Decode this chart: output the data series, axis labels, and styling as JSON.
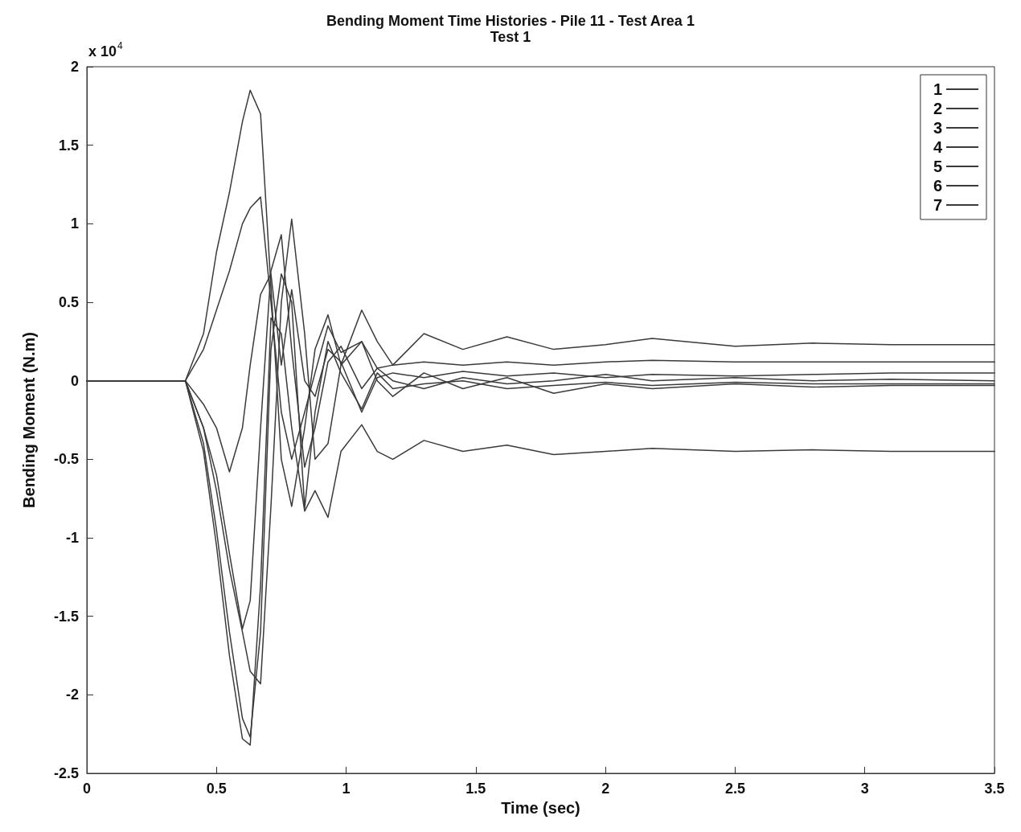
{
  "chart_data": {
    "type": "line",
    "title": "Bending Moment Time Histories - Pile 11 - Test Area 1",
    "subtitle": "Test 1",
    "xlabel": "Time (sec)",
    "ylabel": "Bending Moment (N.m)",
    "annotations": [
      "x 10$^{4}$"
    ],
    "x": [
      0,
      0.38,
      0.45,
      0.5,
      0.55,
      0.6,
      0.63,
      0.67,
      0.71,
      0.75,
      0.79,
      0.84,
      0.88,
      0.93,
      0.98,
      1.06,
      1.12,
      1.18,
      1.3,
      1.45,
      1.62,
      1.8,
      2.0,
      2.18,
      2.5,
      2.8,
      3.1,
      3.5
    ],
    "series": [
      {
        "name": "1",
        "color": "#3a3a3a",
        "values": [
          0,
          0,
          0.3,
          0.82,
          1.2,
          1.65,
          1.85,
          1.7,
          0.6,
          -0.5,
          -0.8,
          -0.3,
          0.2,
          0.42,
          0.1,
          0.45,
          0.25,
          0.1,
          0.3,
          0.2,
          0.28,
          0.2,
          0.23,
          0.27,
          0.22,
          0.24,
          0.23,
          0.23
        ]
      },
      {
        "name": "2",
        "color": "#3a3a3a",
        "values": [
          0,
          0,
          0.2,
          0.45,
          0.7,
          1.0,
          1.1,
          1.17,
          0.5,
          -0.2,
          -0.5,
          -0.2,
          0.05,
          0.35,
          0.18,
          0.25,
          0.08,
          0.1,
          0.12,
          0.1,
          0.12,
          0.1,
          0.12,
          0.13,
          0.12,
          0.12,
          0.12,
          0.12
        ]
      },
      {
        "name": "3",
        "color": "#3a3a3a",
        "values": [
          0,
          0,
          -0.15,
          -0.3,
          -0.58,
          -0.3,
          0.1,
          0.55,
          0.68,
          0.1,
          0.58,
          0.0,
          -0.1,
          0.2,
          0.12,
          -0.2,
          0.02,
          0.05,
          0.02,
          0.06,
          0.03,
          0.05,
          0.02,
          0.04,
          0.03,
          0.04,
          0.05,
          0.05
        ]
      },
      {
        "name": "4",
        "color": "#3a3a3a",
        "values": [
          0,
          0,
          -0.3,
          -0.6,
          -1.1,
          -1.58,
          -1.4,
          -0.3,
          0.7,
          0.93,
          0.2,
          -0.55,
          -0.3,
          0.12,
          0.22,
          -0.05,
          0.08,
          0.0,
          -0.05,
          0.02,
          -0.02,
          0.0,
          0.04,
          0.0,
          0.02,
          0.0,
          0.01,
          0.0
        ]
      },
      {
        "name": "5",
        "color": "#3a3a3a",
        "values": [
          0,
          0,
          -0.3,
          -0.7,
          -1.2,
          -1.6,
          -1.85,
          -1.93,
          -0.8,
          0.5,
          1.03,
          0.3,
          -0.5,
          -0.4,
          0.1,
          0.25,
          0.0,
          -0.1,
          0.05,
          -0.05,
          0.02,
          -0.08,
          -0.02,
          -0.05,
          -0.02,
          -0.04,
          -0.03,
          -0.03
        ]
      },
      {
        "name": "6",
        "color": "#3a3a3a",
        "values": [
          0,
          0,
          -0.4,
          -0.95,
          -1.6,
          -2.15,
          -2.27,
          -1.6,
          0.2,
          0.68,
          0.5,
          -0.81,
          -0.2,
          0.25,
          0.05,
          -0.18,
          0.05,
          -0.05,
          -0.02,
          0.0,
          -0.05,
          -0.03,
          -0.01,
          -0.03,
          -0.01,
          -0.02,
          -0.02,
          -0.02
        ]
      },
      {
        "name": "7",
        "color": "#3a3a3a",
        "values": [
          0,
          0,
          -0.45,
          -1.05,
          -1.75,
          -2.28,
          -2.32,
          -1.3,
          0.4,
          0.3,
          -0.3,
          -0.83,
          -0.7,
          -0.87,
          -0.45,
          -0.28,
          -0.45,
          -0.5,
          -0.38,
          -0.45,
          -0.41,
          -0.47,
          -0.45,
          -0.43,
          -0.45,
          -0.44,
          -0.45,
          -0.45
        ]
      }
    ],
    "xlim": [
      0,
      3.5
    ],
    "xticks": [
      0,
      0.5,
      1,
      1.5,
      2,
      2.5,
      3,
      3.5
    ],
    "ylim": [
      -2.5,
      2
    ],
    "yticks": [
      -2.5,
      -2,
      -1.5,
      -1,
      -0.5,
      0,
      0.5,
      1,
      1.5,
      2
    ],
    "grid": false,
    "legend": "top right",
    "marker": "none",
    "line_style": "solid"
  }
}
